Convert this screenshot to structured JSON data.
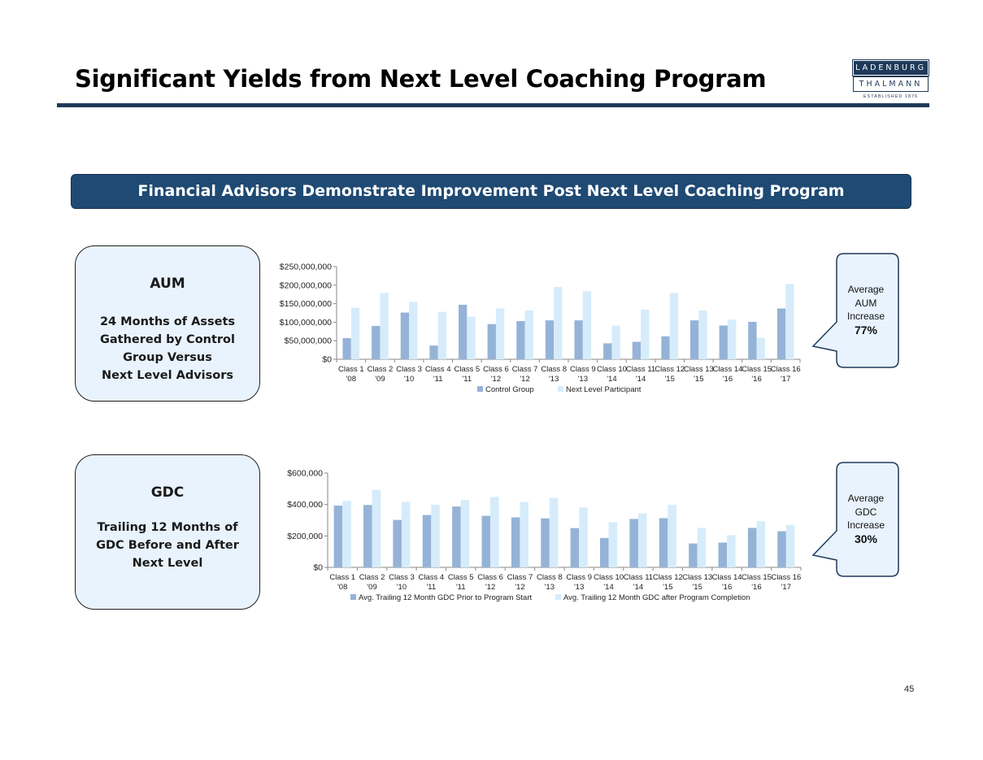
{
  "title": "Significant Yields from Next Level Coaching Program",
  "logo": {
    "line1": "LADENBURG",
    "line2": "THALMANN",
    "line3": "ESTABLISHED 1876"
  },
  "banner": "Financial Advisors Demonstrate Improvement Post Next Level Coaching Program",
  "aum_box": {
    "title": "AUM",
    "description": "24 Months of Assets\nGathered by Control\nGroup Versus\nNext Level Advisors"
  },
  "gdc_box": {
    "title": "GDC",
    "description": "Trailing 12 Months of\nGDC Before and After\nNext Level"
  },
  "aum_callout": {
    "label": "Average AUM Increase",
    "line1": "Average",
    "line2": "AUM",
    "line3": "Increase",
    "value": "77%"
  },
  "gdc_callout": {
    "label": "Average GDC Increase",
    "line1": "Average",
    "line2": "GDC",
    "line3": "Increase",
    "value": "30%"
  },
  "page_number": "45",
  "colors": {
    "navy": "#1f3a5a",
    "banner": "#1f4a73",
    "series_dark": "#95b3d7",
    "series_light": "#d6ecfb",
    "box_fill": "#e8f3fd"
  },
  "chart_data": [
    {
      "type": "bar",
      "title": "",
      "categories": [
        [
          "Class 1",
          "'08"
        ],
        [
          "Class 2",
          "'09"
        ],
        [
          "Class 3",
          "'10"
        ],
        [
          "Class 4",
          "'11"
        ],
        [
          "Class 5",
          "'11"
        ],
        [
          "Class 6",
          "'12"
        ],
        [
          "Class 7",
          "'12"
        ],
        [
          "Class 8",
          "'13"
        ],
        [
          "Class 9",
          "'13"
        ],
        [
          "Class 10",
          "'14"
        ],
        [
          "Class 11",
          "'14"
        ],
        [
          "Class 12",
          "'15"
        ],
        [
          "Class 13",
          "'15"
        ],
        [
          "Class 14",
          "'16"
        ],
        [
          "Class 15",
          "'16"
        ],
        [
          "Class 16",
          "'17"
        ]
      ],
      "series": [
        {
          "name": "Control Group",
          "color": "#95b3d7",
          "values": [
            57000000,
            90000000,
            126000000,
            37000000,
            147000000,
            95000000,
            103000000,
            105000000,
            105000000,
            43000000,
            47000000,
            62000000,
            105000000,
            91000000,
            101000000,
            137000000
          ]
        },
        {
          "name": "Next Level Participant",
          "color": "#d6ecfb",
          "values": [
            139000000,
            179000000,
            155000000,
            128000000,
            115000000,
            137000000,
            132000000,
            195000000,
            184000000,
            91000000,
            134000000,
            179000000,
            132000000,
            107000000,
            58000000,
            203000000
          ]
        }
      ],
      "yticks": [
        "$0",
        "$50,000,000",
        "$100,000,000",
        "$150,000,000",
        "$200,000,000",
        "$250,000,000"
      ],
      "ylim": [
        0,
        250000000
      ],
      "xlabel": "",
      "ylabel": "",
      "legend": "bottom"
    },
    {
      "type": "bar",
      "title": "",
      "categories": [
        [
          "Class 1",
          "'08"
        ],
        [
          "Class 2",
          "'09"
        ],
        [
          "Class 3",
          "'10"
        ],
        [
          "Class 4",
          "'11"
        ],
        [
          "Class 5",
          "'11"
        ],
        [
          "Class 6",
          "'12"
        ],
        [
          "Class 7",
          "'12"
        ],
        [
          "Class 8",
          "'13"
        ],
        [
          "Class 9",
          "'13"
        ],
        [
          "Class 10",
          "'14"
        ],
        [
          "Class 11",
          "'14"
        ],
        [
          "Class 12",
          "'15"
        ],
        [
          "Class 13",
          "'15"
        ],
        [
          "Class 14",
          "'16"
        ],
        [
          "Class 15",
          "'16"
        ],
        [
          "Class 16",
          "'17"
        ]
      ],
      "series": [
        {
          "name": "Avg. Trailing 12 Month GDC Prior to Program Start",
          "color": "#95b3d7",
          "values": [
            393000,
            397000,
            302000,
            333000,
            387000,
            328000,
            318000,
            312000,
            250000,
            187000,
            308000,
            313000,
            152000,
            158000,
            251000,
            230000
          ]
        },
        {
          "name": "Avg. Trailing 12 Month GDC after Program Completion",
          "color": "#d6ecfb",
          "values": [
            422000,
            493000,
            416000,
            398000,
            430000,
            448000,
            416000,
            442000,
            381000,
            288000,
            344000,
            397000,
            251000,
            205000,
            294000,
            270000
          ]
        }
      ],
      "yticks": [
        "$0",
        "$200,000",
        "$400,000",
        "$600,000"
      ],
      "ylim": [
        0,
        600000
      ],
      "xlabel": "",
      "ylabel": "",
      "legend": "bottom"
    }
  ]
}
